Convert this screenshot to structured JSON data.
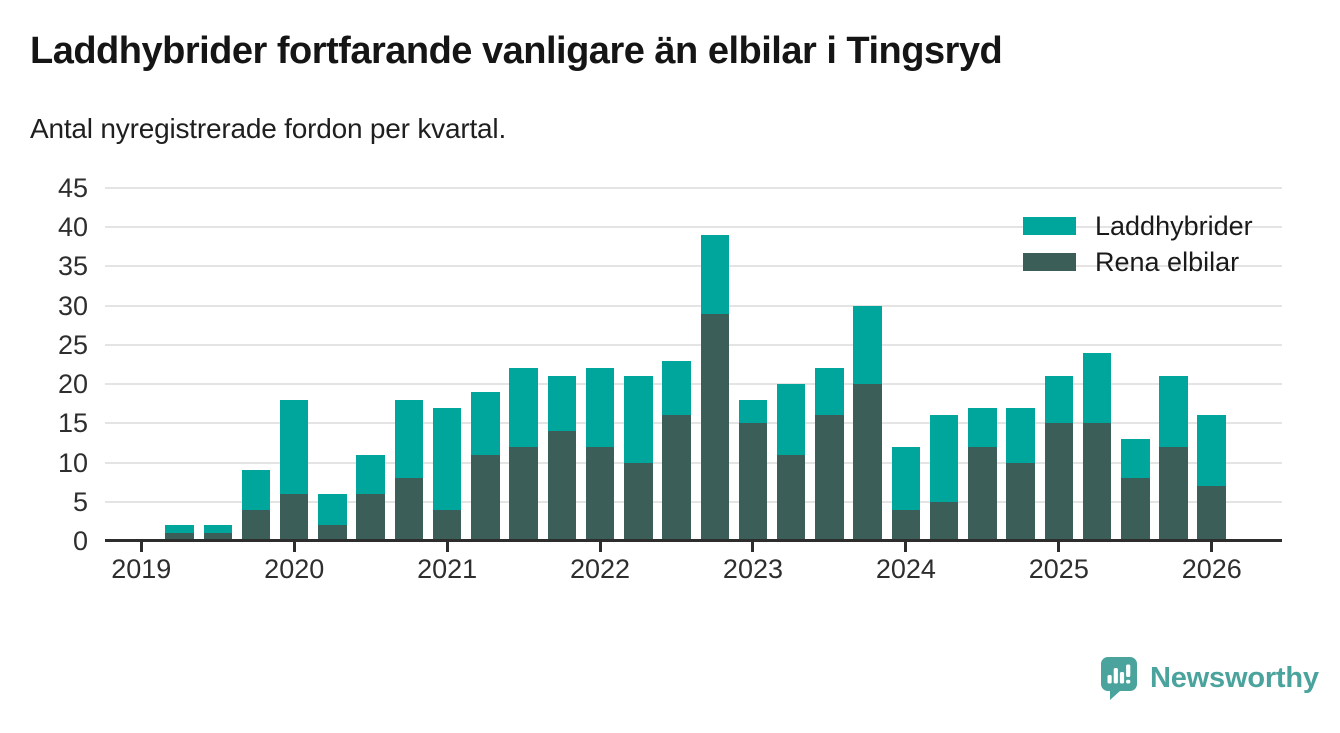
{
  "chart_data": {
    "type": "bar",
    "stacked": true,
    "title": "Laddhybrider fortfarande vanligare än elbilar i Tingsryd",
    "subtitle": "Antal nyregistrerade fordon per kvartal.",
    "categories": [
      "2019 Q1",
      "2019 Q2",
      "2019 Q3",
      "2019 Q4",
      "2020 Q1",
      "2020 Q2",
      "2020 Q3",
      "2020 Q4",
      "2021 Q1",
      "2021 Q2",
      "2021 Q3",
      "2021 Q4",
      "2022 Q1",
      "2022 Q2",
      "2022 Q3",
      "2022 Q4",
      "2023 Q1",
      "2023 Q2",
      "2023 Q3",
      "2023 Q4",
      "2024 Q1",
      "2024 Q2",
      "2024 Q3",
      "2024 Q4",
      "2025 Q1",
      "2025 Q2",
      "2025 Q3",
      "2025 Q4",
      "2026 Q1"
    ],
    "series": [
      {
        "name": "Laddhybrider",
        "color": "#00a69b",
        "values": [
          0,
          1,
          1,
          5,
          12,
          4,
          5,
          10,
          13,
          8,
          10,
          7,
          10,
          11,
          7,
          10,
          3,
          9,
          6,
          10,
          8,
          11,
          5,
          7,
          6,
          9,
          5,
          9,
          9
        ]
      },
      {
        "name": "Rena elbilar",
        "color": "#3b5f58",
        "values": [
          0,
          1,
          1,
          4,
          6,
          2,
          6,
          8,
          4,
          11,
          12,
          14,
          12,
          10,
          16,
          29,
          15,
          11,
          16,
          20,
          4,
          5,
          12,
          10,
          15,
          15,
          8,
          12,
          7
        ]
      }
    ],
    "stacked_totals": [
      0,
      2,
      2,
      9,
      18,
      6,
      11,
      18,
      17,
      19,
      22,
      21,
      22,
      21,
      23,
      39,
      18,
      20,
      22,
      30,
      12,
      16,
      17,
      17,
      21,
      24,
      13,
      21,
      16
    ],
    "stack_order_bottom_to_top": [
      "Rena elbilar",
      "Laddhybrider"
    ],
    "xlabel": "",
    "ylabel": "",
    "ylim": [
      0,
      45
    ],
    "y_ticks": [
      0,
      5,
      10,
      15,
      20,
      25,
      30,
      35,
      40,
      45
    ],
    "x_tick_labels": [
      "2019",
      "2020",
      "2021",
      "2022",
      "2023",
      "2024",
      "2025",
      "2026"
    ],
    "grid": true,
    "legend_position": "top-right"
  },
  "legend": {
    "items": [
      {
        "label": "Laddhybrider",
        "color": "#00a69b"
      },
      {
        "label": "Rena elbilar",
        "color": "#3b5f58"
      }
    ]
  },
  "branding": {
    "name": "Newsworthy",
    "color": "#4aa39c",
    "logo_icon": "bar-chart-speech-bubble"
  }
}
